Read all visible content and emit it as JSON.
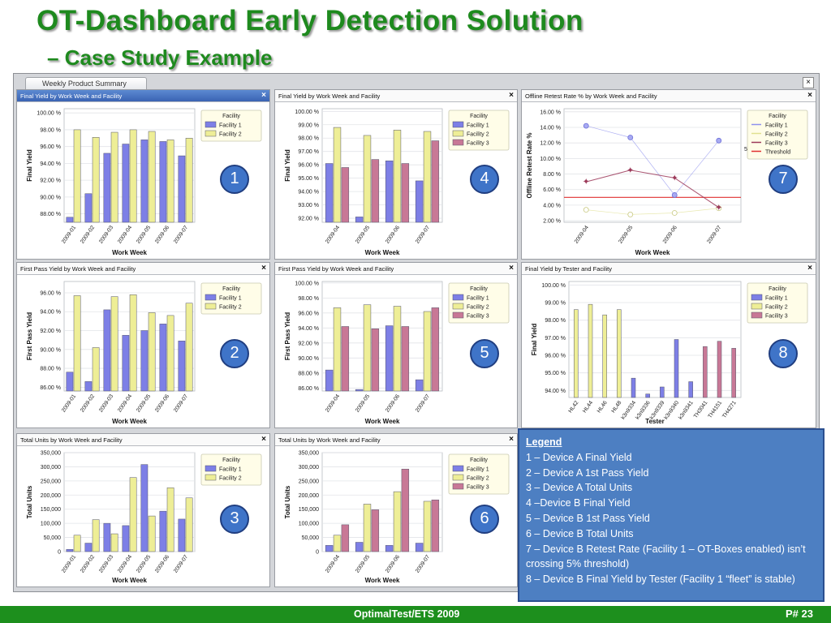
{
  "slide": {
    "title": "OT-Dashboard Early Detection Solution",
    "subtitle": "– Case Study Example"
  },
  "window": {
    "tab_label": "Weekly Product Summary",
    "close_glyph": "×"
  },
  "colors": {
    "facility_1": "#7d7fe6",
    "facility_2": "#eeee96",
    "facility_3": "#c87896",
    "threshold": "#e03030",
    "legend_bg": "#4d7fc2",
    "footer_bg": "#1d8f1d",
    "title_green": "#1e8a1e"
  },
  "legend": {
    "title": "Legend",
    "items": [
      "1 – Device A Final Yield",
      "2 – Device A 1st Pass Yield",
      "3 – Device A Total Units",
      "4 –Device B Final Yield",
      "5 – Device B 1st Pass Yield",
      "6 – Device B Total Units",
      "7 – Device B Retest Rate (Facility 1 – OT-Boxes enabled) isn’t crossing 5% threshold)",
      "8 – Device B Final Yield  by Tester (Facility 1 “fleet” is stable)"
    ]
  },
  "footer": {
    "text": "OptimalTest/ETS 2009",
    "page": "P# 23"
  },
  "chart_data": [
    {
      "id": "c1",
      "badge": "1",
      "type": "bar",
      "title": "Final Yield by Work Week and Facility",
      "xlabel": "Work Week",
      "ylabel": "Final Yield",
      "categories": [
        "2009-01",
        "2009-02",
        "2009-03",
        "2009-04",
        "2009-05",
        "2009-06",
        "2009-07"
      ],
      "ylim": [
        87,
        100.5
      ],
      "yticks": [
        88,
        90,
        92,
        94,
        96,
        98,
        100
      ],
      "ytick_labels": [
        "88.00 %",
        "90.00 %",
        "92.00 %",
        "94.00 %",
        "96.00 %",
        "98.00 %",
        "100.00 %"
      ],
      "legend_title": "Facility",
      "series": [
        {
          "name": "Facility 1",
          "color": "#7d7fe6",
          "values": [
            87.6,
            90.4,
            95.2,
            96.3,
            96.8,
            96.6,
            94.9
          ]
        },
        {
          "name": "Facility 2",
          "color": "#eeee96",
          "values": [
            98.0,
            97.1,
            97.7,
            98.0,
            97.8,
            96.8,
            97.0
          ]
        }
      ]
    },
    {
      "id": "c4",
      "badge": "4",
      "type": "bar",
      "title": "Final Yield by Work Week and Facility",
      "xlabel": "Work Week",
      "ylabel": "Final Yield",
      "categories": [
        "2009-04",
        "2009-05",
        "2009-06",
        "2009-07"
      ],
      "ylim": [
        91.7,
        100.2
      ],
      "yticks": [
        92,
        93,
        94,
        95,
        96,
        97,
        98,
        99,
        100
      ],
      "ytick_labels": [
        "92.00 %",
        "93.00 %",
        "94.00 %",
        "95.00 %",
        "96.00 %",
        "97.00 %",
        "98.00 %",
        "99.00 %",
        "100.00 %"
      ],
      "legend_title": "Facility",
      "series": [
        {
          "name": "Facility 1",
          "color": "#7d7fe6",
          "values": [
            96.1,
            92.1,
            96.3,
            94.8
          ]
        },
        {
          "name": "Facility 2",
          "color": "#eeee96",
          "values": [
            98.8,
            98.2,
            98.6,
            98.5
          ]
        },
        {
          "name": "Facility 3",
          "color": "#c87896",
          "values": [
            95.8,
            96.4,
            96.1,
            97.8
          ]
        }
      ]
    },
    {
      "id": "c7",
      "badge": "7",
      "type": "line",
      "title": "Offline Retest Rate % by Work Week and Facility",
      "xlabel": "Work Week",
      "ylabel": "Offline Retest Rate %",
      "categories": [
        "2009-04",
        "2009-05",
        "2009-06",
        "2009-07"
      ],
      "ylim": [
        1.8,
        16.4
      ],
      "yticks": [
        2,
        4,
        6,
        8,
        10,
        12,
        14,
        16
      ],
      "ytick_labels": [
        "2.00 %",
        "4.00 %",
        "6.00 %",
        "8.00 %",
        "10.00 %",
        "12.00 %",
        "14.00 %",
        "16.00 %"
      ],
      "threshold": {
        "name": "Threshold",
        "value": 5.0,
        "label": "5.00 %",
        "color": "#e03030"
      },
      "legend_title": "Facility",
      "series": [
        {
          "name": "Facility 1",
          "color": "#8f92ee",
          "values": [
            14.2,
            12.7,
            5.3,
            12.3
          ]
        },
        {
          "name": "Facility 2",
          "color": "#e0e090",
          "values": [
            3.4,
            2.8,
            3.0,
            3.6
          ]
        },
        {
          "name": "Facility 3",
          "color": "#9c3a5a",
          "values": [
            7.0,
            8.5,
            7.5,
            3.7
          ]
        }
      ]
    },
    {
      "id": "c2",
      "badge": "2",
      "type": "bar",
      "title": "First Pass Yield by Work Week and Facility",
      "xlabel": "Work Week",
      "ylabel": "First Pass Yield",
      "categories": [
        "2009-01",
        "2009-02",
        "2009-03",
        "2009-04",
        "2009-05",
        "2009-06",
        "2009-07"
      ],
      "ylim": [
        85.6,
        97.2
      ],
      "yticks": [
        86,
        88,
        90,
        92,
        94,
        96
      ],
      "ytick_labels": [
        "86.00 %",
        "88.00 %",
        "90.00 %",
        "92.00 %",
        "94.00 %",
        "96.00 %"
      ],
      "legend_title": "Facility",
      "series": [
        {
          "name": "Facility 1",
          "color": "#7d7fe6",
          "values": [
            87.6,
            86.6,
            94.2,
            91.5,
            92.0,
            92.7,
            90.9
          ]
        },
        {
          "name": "Facility 2",
          "color": "#eeee96",
          "values": [
            95.7,
            90.2,
            95.6,
            95.8,
            93.9,
            93.6,
            94.9
          ]
        }
      ]
    },
    {
      "id": "c5",
      "badge": "5",
      "type": "bar",
      "title": "First Pass Yield by Work Week  and Facility",
      "xlabel": "Work Week",
      "ylabel": "First Pass Yield",
      "categories": [
        "2009-04",
        "2009-05",
        "2009-06",
        "2009-07"
      ],
      "ylim": [
        85.6,
        100.2
      ],
      "yticks": [
        86,
        88,
        90,
        92,
        94,
        96,
        98,
        100
      ],
      "ytick_labels": [
        "86.00 %",
        "88.00 %",
        "90.00 %",
        "92.00 %",
        "94.00 %",
        "96.00 %",
        "98.00 %",
        "100.00 %"
      ],
      "legend_title": "Facility",
      "series": [
        {
          "name": "Facility 1",
          "color": "#7d7fe6",
          "values": [
            88.4,
            85.8,
            94.3,
            87.1
          ]
        },
        {
          "name": "Facility 2",
          "color": "#eeee96",
          "values": [
            96.7,
            97.1,
            96.9,
            96.2
          ]
        },
        {
          "name": "Facility 3",
          "color": "#c87896",
          "values": [
            94.2,
            93.9,
            94.2,
            96.7
          ]
        }
      ]
    },
    {
      "id": "c8",
      "badge": "8",
      "type": "bar",
      "title": "Final Yield by Tester and Facility",
      "xlabel": "Tester",
      "ylabel": "Final Yield",
      "categories": [
        "HL42",
        "HL44",
        "HL46",
        "HL48",
        "k3n9334",
        "k3n9336",
        "k3n9339",
        "k3n9340",
        "k3n9341",
        "TH3041",
        "TH4151",
        "TH4271"
      ],
      "ylim": [
        93.6,
        100.2
      ],
      "yticks": [
        94,
        95,
        96,
        97,
        98,
        99,
        100
      ],
      "ytick_labels": [
        "94.00 %",
        "95.00 %",
        "96.00 %",
        "97.00 %",
        "98.00 %",
        "99.00 %",
        "100.00 %"
      ],
      "legend_title": "Facility",
      "series": [
        {
          "name": "Facility 1",
          "color": "#7d7fe6",
          "values": [
            null,
            null,
            null,
            null,
            94.7,
            93.8,
            94.2,
            96.9,
            94.5,
            null,
            null,
            null
          ]
        },
        {
          "name": "Facility 2",
          "color": "#eeee96",
          "values": [
            98.6,
            98.9,
            98.3,
            98.6,
            null,
            null,
            null,
            null,
            null,
            null,
            null,
            null
          ]
        },
        {
          "name": "Facility 3",
          "color": "#c87896",
          "values": [
            null,
            null,
            null,
            null,
            null,
            null,
            null,
            null,
            null,
            96.5,
            96.8,
            96.4
          ]
        }
      ]
    },
    {
      "id": "c3",
      "badge": "3",
      "type": "bar",
      "title": "Total Units by Work Week and Facility",
      "xlabel": "Work Week",
      "ylabel": "Total Units",
      "categories": [
        "2009-01",
        "2009-02",
        "2009-03",
        "2009-04",
        "2009-05",
        "2009-06",
        "2009-07"
      ],
      "ylim": [
        0,
        350000
      ],
      "yticks": [
        0,
        50000,
        100000,
        150000,
        200000,
        250000,
        300000,
        350000
      ],
      "ytick_labels": [
        "0",
        "50,000",
        "100,000",
        "150,000",
        "200,000",
        "250,000",
        "300,000",
        "350,000"
      ],
      "legend_title": "Facility",
      "series": [
        {
          "name": "Facility 1",
          "color": "#7d7fe6",
          "values": [
            8000,
            30000,
            100000,
            92000,
            308000,
            143000,
            115000
          ]
        },
        {
          "name": "Facility 2",
          "color": "#eeee96",
          "values": [
            58000,
            113000,
            63000,
            262000,
            126000,
            226000,
            190000
          ]
        }
      ]
    },
    {
      "id": "c6",
      "badge": "6",
      "type": "bar",
      "title": "Total Units by Work Week and Facility",
      "xlabel": "Work Week",
      "ylabel": "Total Units",
      "categories": [
        "2009-04",
        "2009-05",
        "2009-06",
        "2009-07"
      ],
      "ylim": [
        0,
        350000
      ],
      "yticks": [
        0,
        50000,
        100000,
        150000,
        200000,
        250000,
        300000,
        350000
      ],
      "ytick_labels": [
        "0",
        "50,000",
        "100,000",
        "150,000",
        "200,000",
        "250,000",
        "300,000",
        "350,000"
      ],
      "legend_title": "Facility",
      "series": [
        {
          "name": "Facility 1",
          "color": "#7d7fe6",
          "values": [
            22000,
            33000,
            22000,
            30000
          ]
        },
        {
          "name": "Facility 2",
          "color": "#eeee96",
          "values": [
            58000,
            168000,
            212000,
            178000
          ]
        },
        {
          "name": "Facility 3",
          "color": "#c87896",
          "values": [
            95000,
            148000,
            292000,
            183000
          ]
        }
      ]
    }
  ]
}
